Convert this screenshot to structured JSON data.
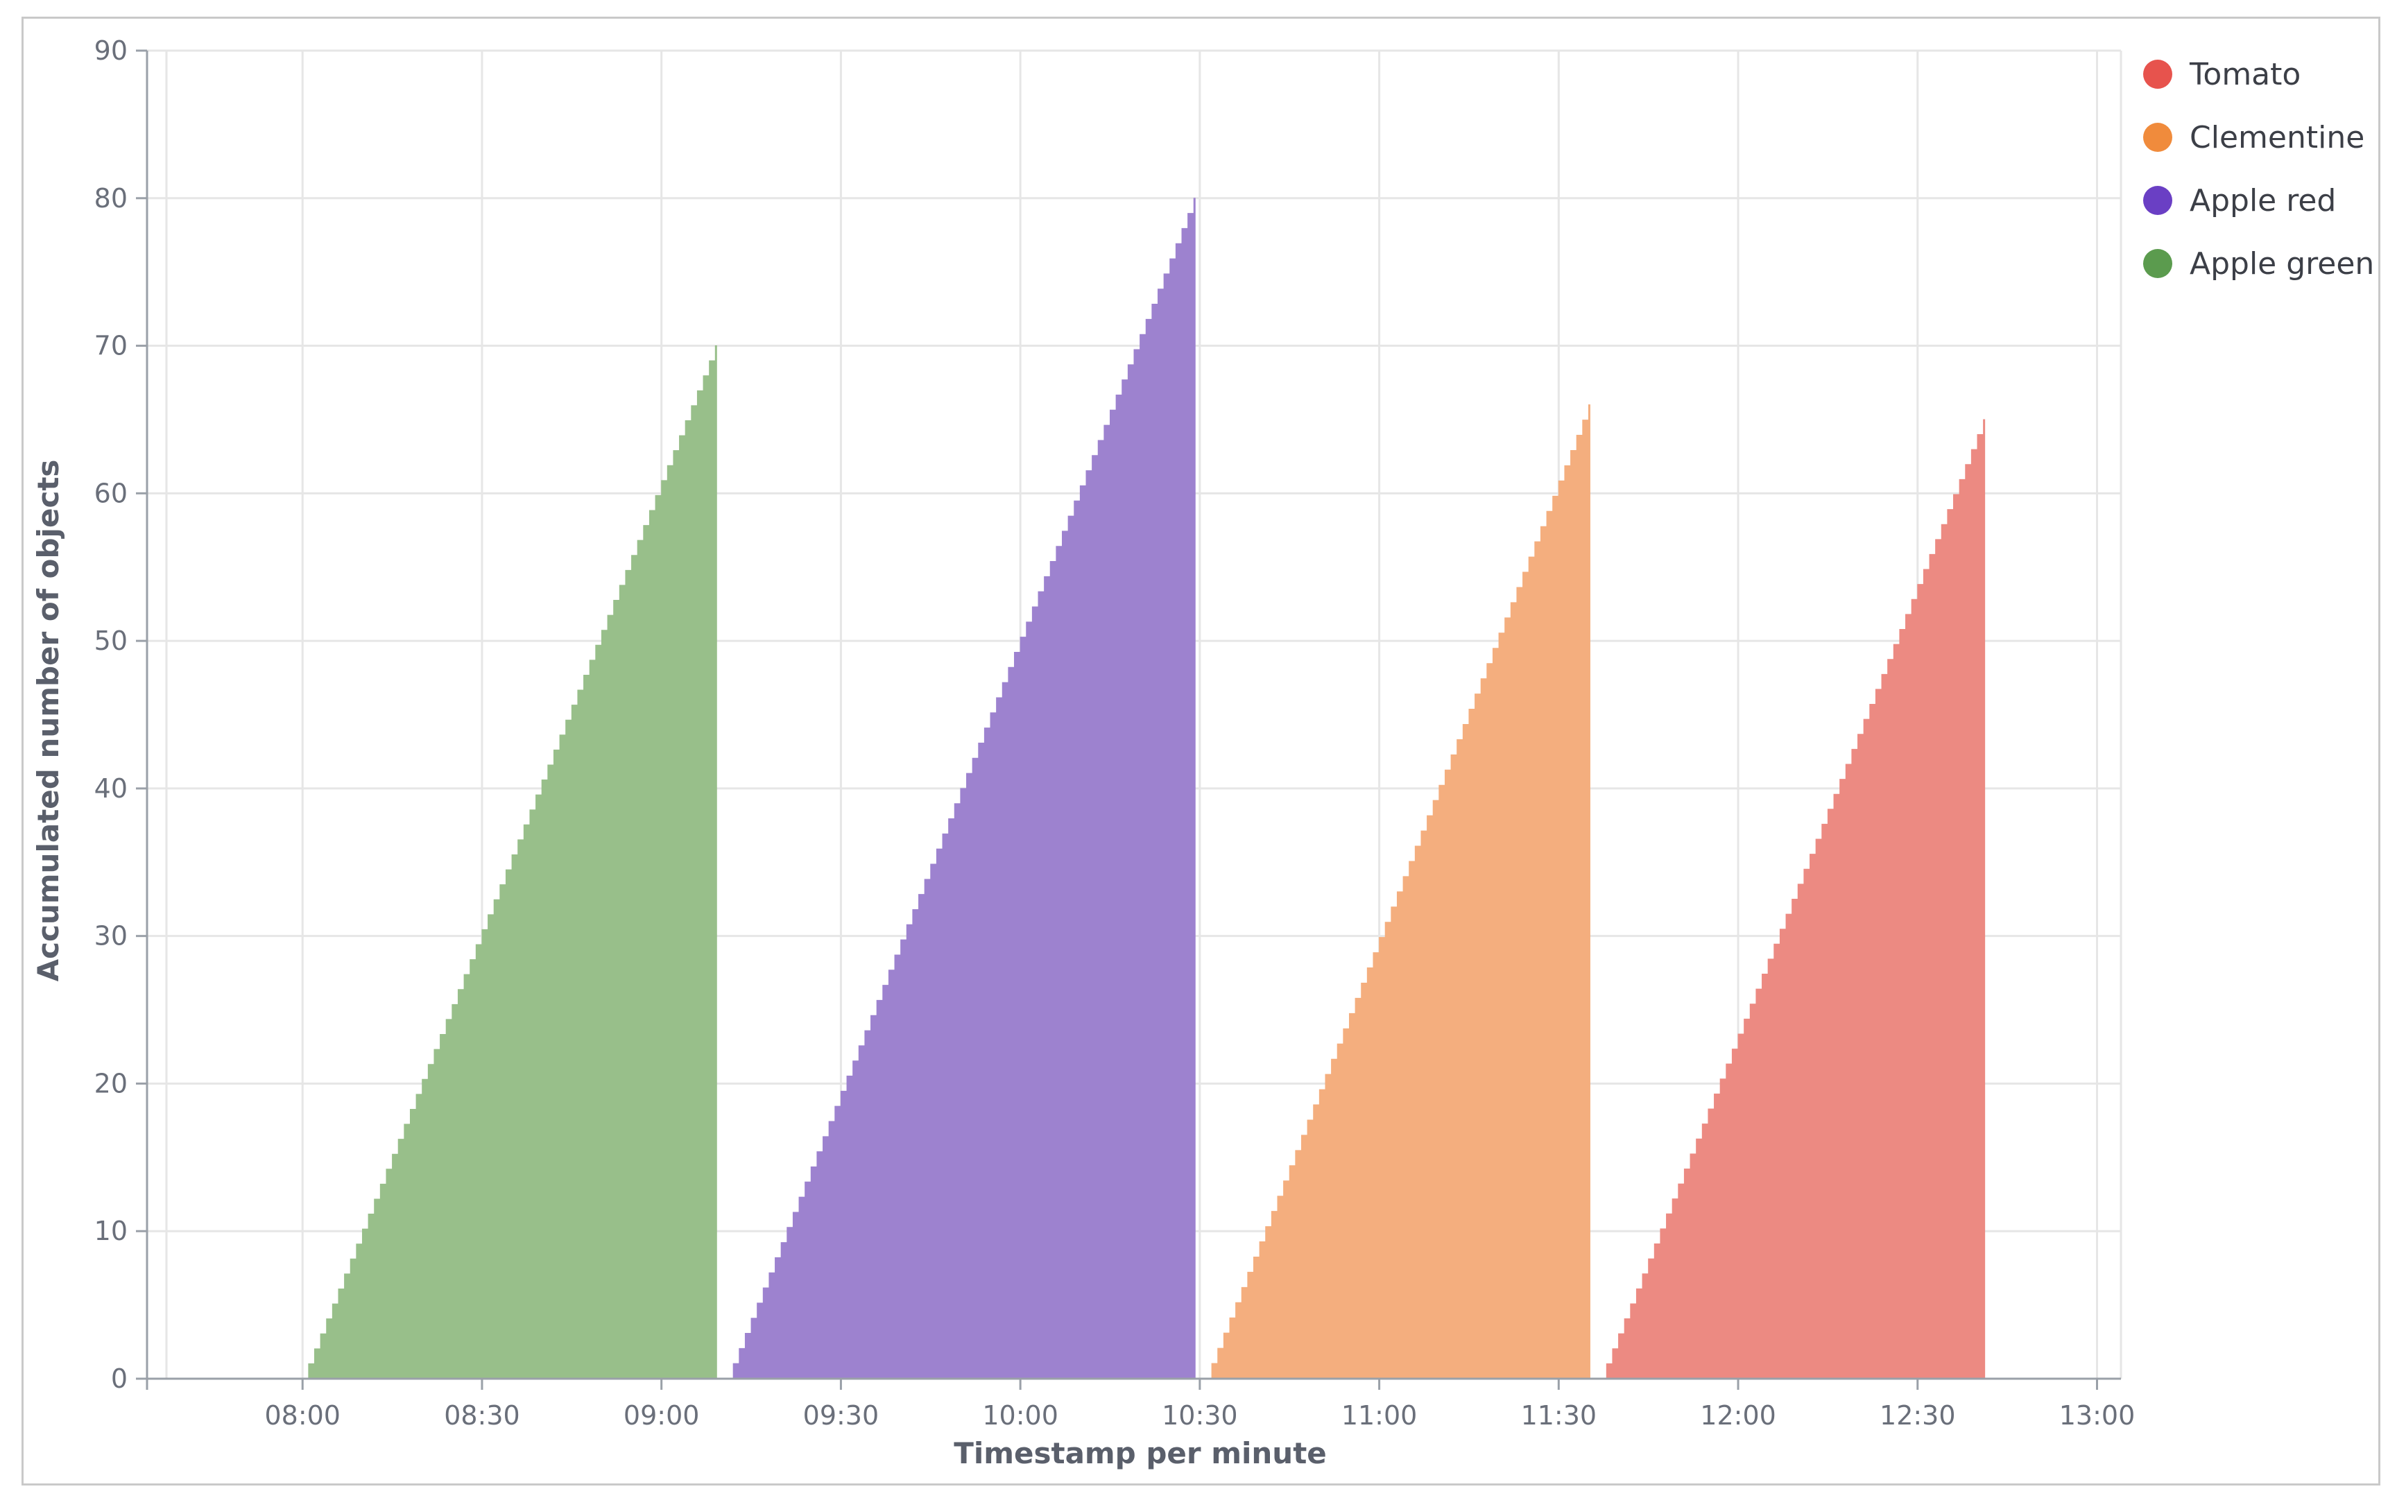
{
  "chart_data": {
    "type": "area",
    "title": "",
    "xlabel": "Timestamp per minute",
    "ylabel": "Accumulated number of objects",
    "x_ticks": [
      "08:00",
      "08:30",
      "09:00",
      "09:30",
      "10:00",
      "10:30",
      "11:00",
      "11:30",
      "12:00",
      "12:30",
      "13:00"
    ],
    "xlim": [
      "07:34",
      "13:04"
    ],
    "ylim": [
      0,
      90
    ],
    "y_ticks": [
      0,
      10,
      20,
      30,
      40,
      50,
      60,
      70,
      80,
      90
    ],
    "grid": true,
    "legend_position": "top-right",
    "series": [
      {
        "name": "Tomato",
        "color": "#e7534d",
        "fill": "#ec8a82",
        "start": "11:37",
        "end": "12:41",
        "y_start": 0,
        "y_end": 65
      },
      {
        "name": "Clementine",
        "color": "#f08b3c",
        "fill": "#f4ae7e",
        "start": "10:31",
        "end": "11:35",
        "y_start": 0,
        "y_end": 66
      },
      {
        "name": "Apple red",
        "color": "#6a3fc4",
        "fill": "#9d82cf",
        "start": "09:11",
        "end": "10:29",
        "y_start": 0,
        "y_end": 80
      },
      {
        "name": "Apple green",
        "color": "#5b9b4e",
        "fill": "#98bf8a",
        "start": "08:00",
        "end": "09:09",
        "y_start": 0,
        "y_end": 70
      }
    ]
  }
}
